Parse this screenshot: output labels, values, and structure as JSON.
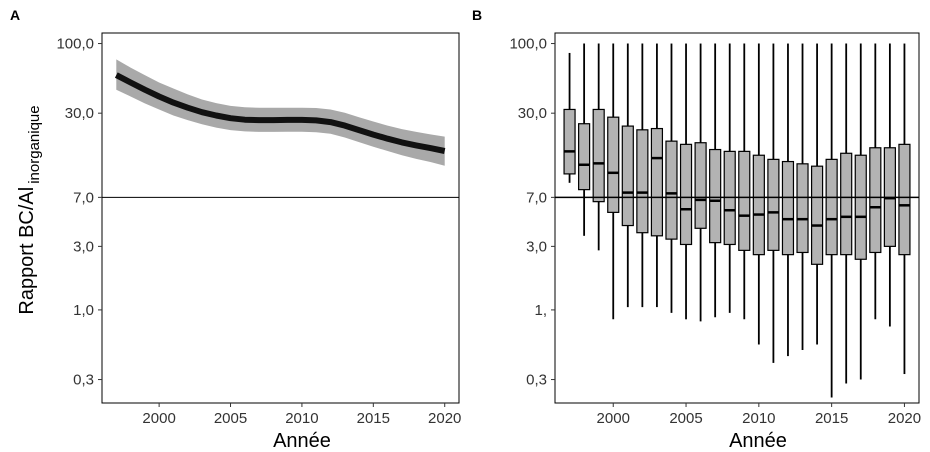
{
  "chart_data": [
    {
      "panel": "A",
      "type": "line",
      "xlabel": "Année",
      "ylabel": "Rapport BC/Al",
      "ylabel_subscript": "inorganique",
      "y_scale": "log",
      "xlim": [
        1996,
        2021
      ],
      "ylim": [
        0.2,
        120
      ],
      "x_ticks": [
        2000,
        2005,
        2010,
        2015,
        2020
      ],
      "y_ticks": [
        100,
        30,
        7,
        3,
        1,
        0.3
      ],
      "y_tick_labels": [
        "100,0",
        "30,0",
        "7,0",
        "3,0",
        "1,0",
        "0,3"
      ],
      "threshold": 7.0,
      "series": [
        {
          "x": [
            1997,
            1998,
            1999,
            2000,
            2001,
            2002,
            2003,
            2004,
            2005,
            2006,
            2007,
            2008,
            2009,
            2010,
            2011,
            2012,
            2013,
            2014,
            2015,
            2016,
            2017,
            2018,
            2019,
            2020
          ],
          "y": [
            58,
            51,
            45,
            40,
            36,
            33,
            30.5,
            28.8,
            27.5,
            26.8,
            26.6,
            26.6,
            26.7,
            26.7,
            26.5,
            25.7,
            24.2,
            22.4,
            20.7,
            19.3,
            18.1,
            17.2,
            16.4,
            15.6
          ],
          "lower": [
            45,
            40,
            35.5,
            32,
            28.8,
            26.6,
            24.8,
            23.4,
            22.4,
            21.9,
            21.7,
            21.7,
            21.8,
            21.8,
            21.6,
            21.0,
            19.7,
            18.2,
            16.8,
            15.6,
            14.5,
            13.6,
            12.9,
            12.1
          ],
          "upper": [
            76,
            66,
            58,
            51,
            46,
            41.5,
            38,
            35.7,
            34,
            33.2,
            32.9,
            32.9,
            33,
            33,
            32.8,
            32,
            30.2,
            28,
            26,
            24.2,
            22.8,
            21.7,
            20.8,
            20
          ]
        }
      ]
    },
    {
      "panel": "B",
      "type": "box",
      "xlabel": "Année",
      "y_scale": "log",
      "xlim": [
        1996,
        2021
      ],
      "ylim": [
        0.2,
        120
      ],
      "x_ticks": [
        2000,
        2005,
        2010,
        2015,
        2020
      ],
      "y_ticks": [
        100,
        30,
        7,
        3,
        1,
        0.3
      ],
      "y_tick_labels": [
        "100,0",
        "30,0",
        "7,0",
        "3,0",
        "1,",
        "0,3"
      ],
      "threshold": 7.0,
      "boxes": [
        {
          "x": 1997,
          "min": 9,
          "q1": 10.5,
          "median": 15.5,
          "q3": 32,
          "max": 85
        },
        {
          "x": 1998,
          "min": 3.6,
          "q1": 8,
          "median": 12.3,
          "q3": 25,
          "max": 100
        },
        {
          "x": 1999,
          "min": 2.8,
          "q1": 6.5,
          "median": 12.6,
          "q3": 32,
          "max": 100
        },
        {
          "x": 2000,
          "min": 0.85,
          "q1": 5.4,
          "median": 10.7,
          "q3": 28,
          "max": 100
        },
        {
          "x": 2001,
          "min": 1.05,
          "q1": 4.3,
          "median": 7.6,
          "q3": 24,
          "max": 100
        },
        {
          "x": 2002,
          "min": 1.05,
          "q1": 3.8,
          "median": 7.6,
          "q3": 22.5,
          "max": 100
        },
        {
          "x": 2003,
          "min": 1.05,
          "q1": 3.6,
          "median": 13.8,
          "q3": 23,
          "max": 100
        },
        {
          "x": 2004,
          "min": 0.95,
          "q1": 3.4,
          "median": 7.5,
          "q3": 18.5,
          "max": 100
        },
        {
          "x": 2005,
          "min": 0.85,
          "q1": 3.1,
          "median": 5.7,
          "q3": 17.5,
          "max": 100
        },
        {
          "x": 2006,
          "min": 0.82,
          "q1": 4.1,
          "median": 6.7,
          "q3": 18,
          "max": 100
        },
        {
          "x": 2007,
          "min": 0.88,
          "q1": 3.2,
          "median": 6.6,
          "q3": 16,
          "max": 100
        },
        {
          "x": 2008,
          "min": 0.95,
          "q1": 3.1,
          "median": 5.6,
          "q3": 15.5,
          "max": 100
        },
        {
          "x": 2009,
          "min": 0.85,
          "q1": 2.8,
          "median": 5.1,
          "q3": 15.5,
          "max": 100
        },
        {
          "x": 2010,
          "min": 0.55,
          "q1": 2.6,
          "median": 5.2,
          "q3": 14.5,
          "max": 100
        },
        {
          "x": 2011,
          "min": 0.4,
          "q1": 2.8,
          "median": 5.4,
          "q3": 13.5,
          "max": 100
        },
        {
          "x": 2012,
          "min": 0.45,
          "q1": 2.6,
          "median": 4.8,
          "q3": 13,
          "max": 100
        },
        {
          "x": 2013,
          "min": 0.5,
          "q1": 2.7,
          "median": 4.8,
          "q3": 12.5,
          "max": 100
        },
        {
          "x": 2014,
          "min": 0.55,
          "q1": 2.2,
          "median": 4.3,
          "q3": 12,
          "max": 100
        },
        {
          "x": 2015,
          "min": 0.22,
          "q1": 2.6,
          "median": 4.8,
          "q3": 13.5,
          "max": 100
        },
        {
          "x": 2016,
          "min": 0.28,
          "q1": 2.6,
          "median": 5,
          "q3": 15,
          "max": 100
        },
        {
          "x": 2017,
          "min": 0.3,
          "q1": 2.4,
          "median": 5,
          "q3": 14.5,
          "max": 100
        },
        {
          "x": 2018,
          "min": 0.85,
          "q1": 2.7,
          "median": 5.9,
          "q3": 16.5,
          "max": 100
        },
        {
          "x": 2019,
          "min": 0.75,
          "q1": 3.0,
          "median": 6.9,
          "q3": 16.5,
          "max": 100
        },
        {
          "x": 2020,
          "min": 0.33,
          "q1": 2.6,
          "median": 6.1,
          "q3": 17.5,
          "max": 100
        }
      ]
    }
  ],
  "colors": {
    "band": "#a9a9a9",
    "line": "#111111",
    "box_fill": "#b3b3b3",
    "box_stroke": "#000000",
    "threshold": "#000000"
  }
}
